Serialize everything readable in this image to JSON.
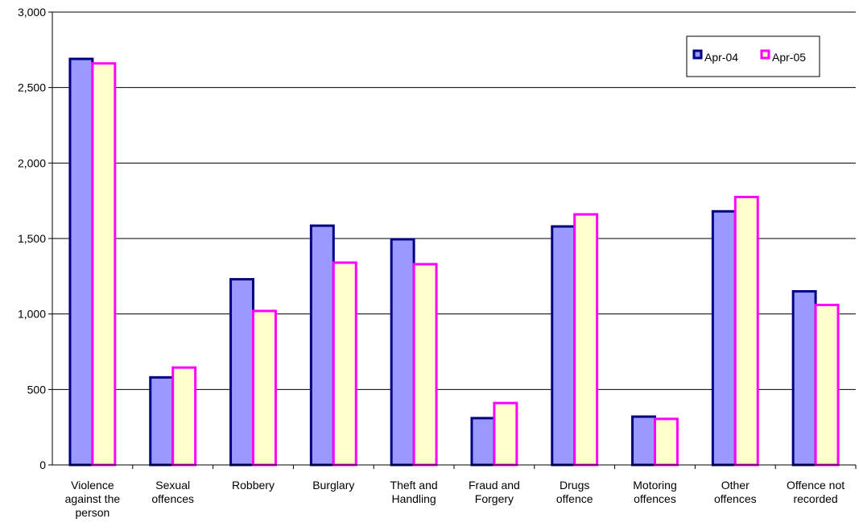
{
  "chart_data": {
    "type": "bar",
    "categories": [
      [
        "Violence",
        "against the",
        "person"
      ],
      [
        "Sexual",
        "offences"
      ],
      [
        "Robbery"
      ],
      [
        "Burglary"
      ],
      [
        "Theft and",
        "Handling"
      ],
      [
        "Fraud and",
        "Forgery"
      ],
      [
        "Drugs",
        "offence"
      ],
      [
        "Motoring",
        "offences"
      ],
      [
        "Other",
        "offences"
      ],
      [
        "Offence not",
        "recorded"
      ]
    ],
    "series": [
      {
        "name": "Apr-04",
        "values": [
          2690,
          580,
          1230,
          1585,
          1495,
          310,
          1580,
          320,
          1680,
          1150
        ],
        "fill": "#9999ff",
        "stroke": "#000080"
      },
      {
        "name": "Apr-05",
        "values": [
          2660,
          645,
          1020,
          1340,
          1330,
          410,
          1660,
          305,
          1775,
          1060
        ],
        "fill": "#ffffcc",
        "stroke": "#ff00ff"
      }
    ],
    "yticks": [
      "0",
      "500",
      "1,000",
      "1,500",
      "2,000",
      "2,500",
      "3,000"
    ],
    "ylim": [
      0,
      3000
    ],
    "grid": true,
    "legend": "top-right"
  }
}
